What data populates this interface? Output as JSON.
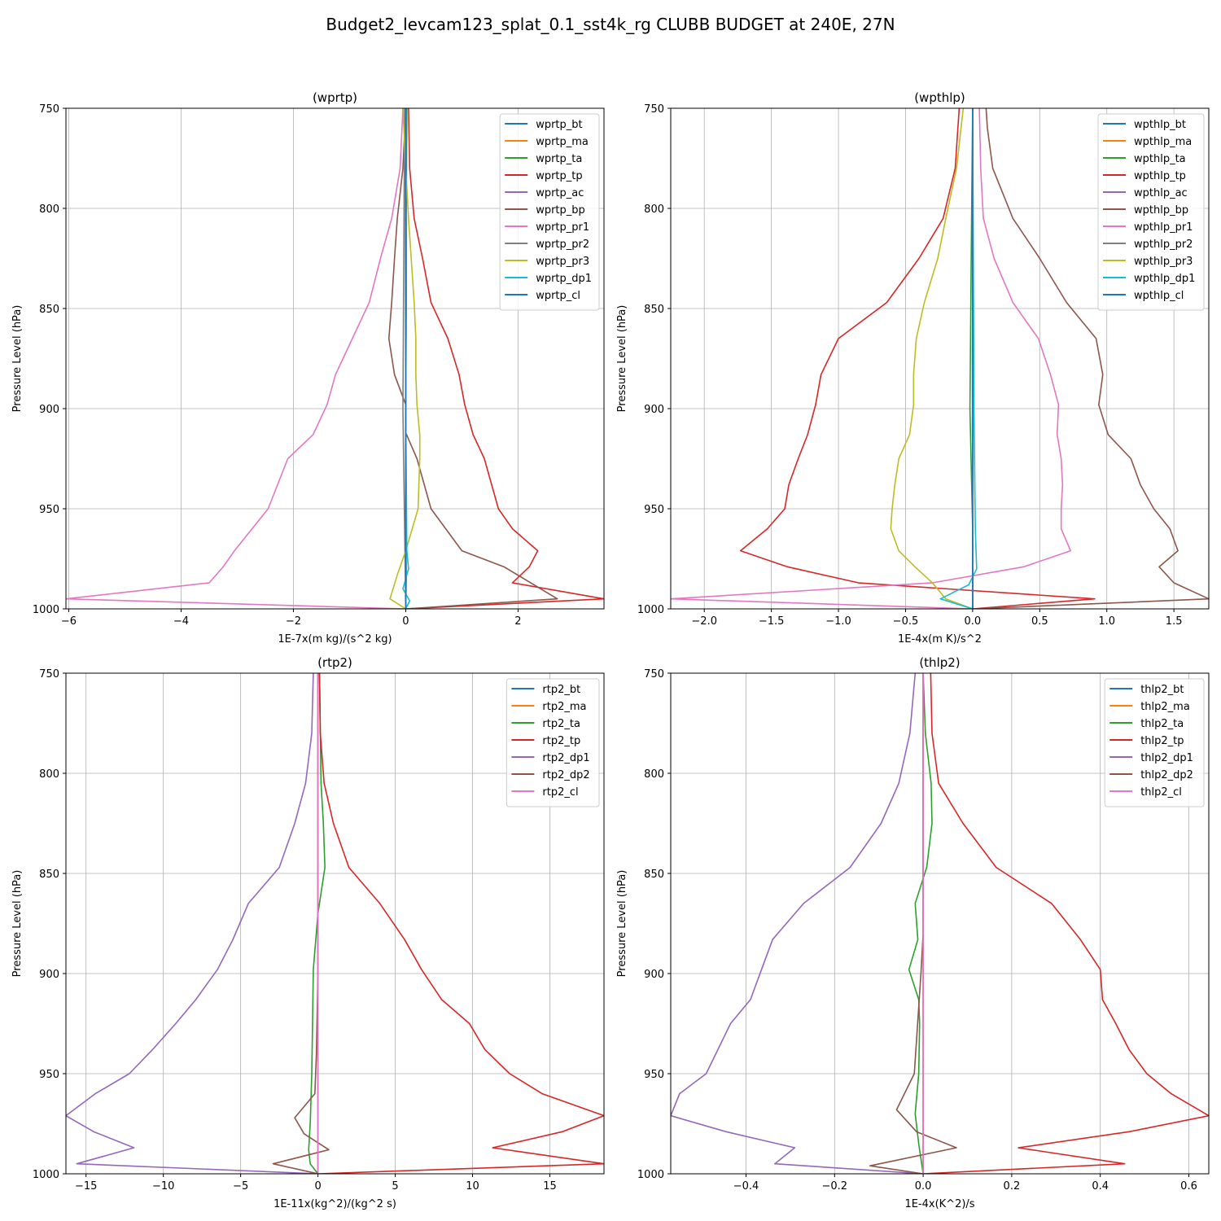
{
  "figure_title": "Budget2_levcam123_splat_0.1_sst4k_rg CLUBB BUDGET at 240E, 27N",
  "colors": {
    "c0": "#1f77b4",
    "c1": "#ff7f0e",
    "c2": "#2ca02c",
    "c3": "#d62728",
    "c4": "#9467bd",
    "c5": "#8c564b",
    "c6": "#e377c2",
    "c7": "#7f7f7f",
    "c8": "#bcbd22",
    "c9": "#17becf"
  },
  "chart_data": [
    {
      "type": "line",
      "title": "(wprtp)",
      "xlabel": "1E-7x(m kg)/(s^2 kg)",
      "ylabel": "Pressure Level (hPa)",
      "xlim": [
        -6.05,
        3.53
      ],
      "ylim": [
        1000,
        750
      ],
      "xticks": [
        -6,
        -4,
        -2,
        0,
        2
      ],
      "xtick_labels": [
        "−6",
        "−4",
        "−2",
        "0",
        "2"
      ],
      "yticks": [
        750,
        800,
        850,
        900,
        950,
        1000
      ],
      "ytick_labels": [
        "750",
        "800",
        "850",
        "900",
        "950",
        "1000"
      ],
      "grid": true,
      "legend": "upper right",
      "series": [
        {
          "name": "wprtp_bt",
          "color": "c0",
          "x": [
            0.0,
            0.0,
            0.0
          ],
          "y": [
            750,
            900,
            1000
          ]
        },
        {
          "name": "wprtp_ma",
          "color": "c1",
          "x": [
            0.0,
            0.0,
            0.0
          ],
          "y": [
            750,
            900,
            1000
          ]
        },
        {
          "name": "wprtp_ta",
          "color": "c2",
          "x": [
            0.02,
            0.01,
            0.01,
            0.0,
            0.0,
            0.01,
            0.0
          ],
          "y": [
            750,
            800,
            850,
            900,
            950,
            985,
            1000
          ]
        },
        {
          "name": "wprtp_tp",
          "color": "c3",
          "x": [
            0.05,
            0.07,
            0.15,
            0.3,
            0.45,
            0.75,
            0.95,
            1.05,
            1.2,
            1.4,
            1.65,
            1.9,
            2.35,
            2.2,
            1.9,
            3.53,
            0.0
          ],
          "y": [
            750,
            780,
            805,
            825,
            847,
            865,
            883,
            898,
            913,
            925,
            950,
            960,
            971,
            979,
            987,
            995,
            1000
          ]
        },
        {
          "name": "wprtp_ac",
          "color": "c4",
          "x": [
            -0.01,
            0.0,
            0.0
          ],
          "y": [
            750,
            900,
            1000
          ]
        },
        {
          "name": "wprtp_bp",
          "color": "c5",
          "x": [
            0.0,
            -0.05,
            -0.15,
            -0.2,
            -0.25,
            -0.3,
            -0.2,
            0.0,
            0.0,
            0.2,
            0.45,
            1.0,
            1.75,
            2.7,
            0.0
          ],
          "y": [
            750,
            780,
            805,
            825,
            847,
            865,
            883,
            898,
            912,
            925,
            950,
            971,
            979,
            995,
            1000
          ]
        },
        {
          "name": "wprtp_pr1",
          "color": "c6",
          "x": [
            -0.05,
            -0.1,
            -0.25,
            -0.45,
            -0.65,
            -0.95,
            -1.25,
            -1.4,
            -1.65,
            -2.1,
            -2.45,
            -3.05,
            -3.25,
            -3.5,
            -6.05,
            0.0
          ],
          "y": [
            750,
            780,
            805,
            825,
            847,
            865,
            883,
            898,
            913,
            925,
            950,
            971,
            979,
            987,
            995,
            1000
          ]
        },
        {
          "name": "wprtp_pr2",
          "color": "c7",
          "x": [
            -0.02,
            -0.03,
            -0.05,
            0.0
          ],
          "y": [
            750,
            800,
            900,
            1000
          ]
        },
        {
          "name": "wprtp_pr3",
          "color": "c8",
          "x": [
            -0.05,
            0.0,
            0.05,
            0.15,
            0.18,
            0.18,
            0.2,
            0.25,
            0.25,
            0.22,
            0.0,
            -0.15,
            -0.28,
            0.0
          ],
          "y": [
            750,
            780,
            805,
            847,
            865,
            883,
            898,
            913,
            925,
            950,
            971,
            983,
            995,
            1000
          ]
        },
        {
          "name": "wprtp_dp1",
          "color": "c9",
          "x": [
            0.0,
            0.0,
            0.02,
            0.05,
            -0.05,
            0.07,
            0.0
          ],
          "y": [
            750,
            900,
            971,
            980,
            990,
            996,
            1000
          ]
        },
        {
          "name": "wprtp_cl",
          "color": "c0",
          "x": [
            0.0,
            0.0
          ],
          "y": [
            750,
            1000
          ]
        }
      ]
    },
    {
      "type": "line",
      "title": "(wpthlp)",
      "xlabel": "1E-4x(m K)/s^2",
      "ylabel": "Pressure Level (hPa)",
      "xlim": [
        -2.25,
        1.76
      ],
      "ylim": [
        1000,
        750
      ],
      "xticks": [
        -2.0,
        -1.5,
        -1.0,
        -0.5,
        0.0,
        0.5,
        1.0,
        1.5
      ],
      "xtick_labels": [
        "−2.0",
        "−1.5",
        "−1.0",
        "−0.5",
        "0.0",
        "0.5",
        "1.0",
        "1.5"
      ],
      "yticks": [
        750,
        800,
        850,
        900,
        950,
        1000
      ],
      "ytick_labels": [
        "750",
        "800",
        "850",
        "900",
        "950",
        "1000"
      ],
      "grid": true,
      "legend": "upper right",
      "series": [
        {
          "name": "wpthlp_bt",
          "color": "c0",
          "x": [
            0.0,
            0.0,
            0.0
          ],
          "y": [
            750,
            900,
            1000
          ]
        },
        {
          "name": "wpthlp_ma",
          "color": "c1",
          "x": [
            0.0,
            0.0,
            0.0
          ],
          "y": [
            750,
            900,
            1000
          ]
        },
        {
          "name": "wpthlp_ta",
          "color": "c2",
          "x": [
            0.0,
            -0.01,
            -0.02,
            0.0,
            0.0
          ],
          "y": [
            750,
            820,
            900,
            960,
            1000
          ]
        },
        {
          "name": "wpthlp_tp",
          "color": "c3",
          "x": [
            -0.1,
            -0.13,
            -0.22,
            -0.4,
            -0.64,
            -1.0,
            -1.13,
            -1.17,
            -1.23,
            -1.3,
            -1.37,
            -1.4,
            -1.53,
            -1.73,
            -1.38,
            -0.85,
            0.91,
            0.0
          ],
          "y": [
            750,
            780,
            805,
            825,
            847,
            865,
            883,
            898,
            913,
            925,
            938,
            950,
            960,
            971,
            979,
            987,
            995,
            1000
          ]
        },
        {
          "name": "wpthlp_ac",
          "color": "c4",
          "x": [
            0.0,
            0.0
          ],
          "y": [
            750,
            1000
          ]
        },
        {
          "name": "wpthlp_bp",
          "color": "c5",
          "x": [
            0.1,
            0.11,
            0.15,
            0.3,
            0.5,
            0.7,
            0.92,
            0.97,
            0.94,
            1.01,
            1.18,
            1.25,
            1.35,
            1.47,
            1.53,
            1.39,
            1.5,
            1.76,
            0.0
          ],
          "y": [
            750,
            760,
            780,
            805,
            825,
            847,
            865,
            883,
            898,
            913,
            925,
            938,
            950,
            960,
            971,
            979,
            987,
            995,
            1000
          ]
        },
        {
          "name": "wpthlp_pr1",
          "color": "c6",
          "x": [
            0.05,
            0.06,
            0.08,
            0.16,
            0.3,
            0.49,
            0.58,
            0.64,
            0.63,
            0.66,
            0.67,
            0.66,
            0.66,
            0.73,
            0.38,
            -0.3,
            -2.25,
            0.0
          ],
          "y": [
            750,
            780,
            805,
            825,
            847,
            865,
            883,
            898,
            913,
            925,
            938,
            950,
            960,
            971,
            979,
            987,
            995,
            1000
          ]
        },
        {
          "name": "wpthlp_pr2",
          "color": "c7",
          "x": [
            0.0,
            0.0
          ],
          "y": [
            750,
            1000
          ]
        },
        {
          "name": "wpthlp_pr3",
          "color": "c8",
          "x": [
            -0.07,
            -0.12,
            -0.2,
            -0.26,
            -0.36,
            -0.42,
            -0.44,
            -0.44,
            -0.47,
            -0.55,
            -0.58,
            -0.6,
            -0.61,
            -0.55,
            -0.43,
            -0.3,
            -0.2,
            0.0
          ],
          "y": [
            750,
            780,
            805,
            825,
            847,
            865,
            883,
            898,
            913,
            925,
            938,
            950,
            960,
            971,
            979,
            987,
            995,
            1000
          ]
        },
        {
          "name": "wpthlp_dp1",
          "color": "c9",
          "x": [
            0.0,
            0.01,
            0.02,
            0.03,
            -0.03,
            -0.24,
            0.0
          ],
          "y": [
            750,
            900,
            960,
            980,
            988,
            995,
            1000
          ]
        },
        {
          "name": "wpthlp_cl",
          "color": "c0",
          "x": [
            0.0,
            0.0
          ],
          "y": [
            750,
            1000
          ]
        }
      ]
    },
    {
      "type": "line",
      "title": "(rtp2)",
      "xlabel": "1E-11x(kg^2)/(kg^2 s)",
      "ylabel": "Pressure Level (hPa)",
      "xlim": [
        -16.3,
        18.5
      ],
      "ylim": [
        1000,
        750
      ],
      "xticks": [
        -15,
        -10,
        -5,
        0,
        5,
        10,
        15
      ],
      "xtick_labels": [
        "−15",
        "−10",
        "−5",
        "0",
        "5",
        "10",
        "15"
      ],
      "yticks": [
        750,
        800,
        850,
        900,
        950,
        1000
      ],
      "ytick_labels": [
        "750",
        "800",
        "850",
        "900",
        "950",
        "1000"
      ],
      "grid": true,
      "legend": "upper right",
      "series": [
        {
          "name": "rtp2_bt",
          "color": "c0",
          "x": [
            0.0,
            0.0
          ],
          "y": [
            750,
            1000
          ]
        },
        {
          "name": "rtp2_ma",
          "color": "c1",
          "x": [
            0.0,
            0.0
          ],
          "y": [
            750,
            1000
          ]
        },
        {
          "name": "rtp2_ta",
          "color": "c2",
          "x": [
            0.1,
            0.2,
            0.35,
            0.45,
            0.0,
            -0.3,
            -0.35,
            -0.4,
            -0.5,
            -0.6,
            -0.5,
            0.0
          ],
          "y": [
            750,
            805,
            825,
            847,
            870,
            898,
            925,
            950,
            975,
            988,
            995,
            1000
          ]
        },
        {
          "name": "rtp2_tp",
          "color": "c3",
          "x": [
            0.1,
            0.15,
            0.4,
            1.0,
            2.0,
            4.0,
            5.6,
            6.7,
            8.0,
            9.8,
            10.8,
            12.4,
            14.5,
            18.5,
            15.8,
            11.3,
            18.5,
            0.0
          ],
          "y": [
            750,
            780,
            805,
            825,
            847,
            865,
            883,
            898,
            913,
            925,
            938,
            950,
            960,
            971,
            979,
            987,
            995,
            1000
          ]
        },
        {
          "name": "rtp2_dp1",
          "color": "c4",
          "x": [
            -0.3,
            -0.4,
            -0.8,
            -1.5,
            -2.5,
            -4.5,
            -5.5,
            -6.5,
            -7.9,
            -9.2,
            -10.7,
            -12.2,
            -14.4,
            -16.3,
            -14.5,
            -11.9,
            -15.6,
            0.0
          ],
          "y": [
            750,
            780,
            805,
            825,
            847,
            865,
            883,
            898,
            913,
            925,
            938,
            950,
            960,
            971,
            979,
            987,
            995,
            1000
          ]
        },
        {
          "name": "rtp2_dp2",
          "color": "c5",
          "x": [
            0.0,
            0.0,
            -0.1,
            -0.2,
            -1.5,
            -0.9,
            0.7,
            -2.9,
            0.0
          ],
          "y": [
            750,
            900,
            940,
            960,
            972,
            980,
            988,
            995,
            1000
          ]
        },
        {
          "name": "rtp2_cl",
          "color": "c6",
          "x": [
            0.0,
            0.0
          ],
          "y": [
            750,
            1000
          ]
        }
      ]
    },
    {
      "type": "line",
      "title": "(thlp2)",
      "xlabel": "1E-4x(K^2)/s",
      "ylabel": "Pressure Level (hPa)",
      "xlim": [
        -0.57,
        0.645
      ],
      "ylim": [
        1000,
        750
      ],
      "xticks": [
        -0.4,
        -0.2,
        0.0,
        0.2,
        0.4,
        0.6
      ],
      "xtick_labels": [
        "−0.4",
        "−0.2",
        "0.0",
        "0.2",
        "0.4",
        "0.6"
      ],
      "yticks": [
        750,
        800,
        850,
        900,
        950,
        1000
      ],
      "ytick_labels": [
        "750",
        "800",
        "850",
        "900",
        "950",
        "1000"
      ],
      "grid": true,
      "legend": "upper right",
      "series": [
        {
          "name": "thlp2_bt",
          "color": "c0",
          "x": [
            0.0,
            0.0
          ],
          "y": [
            750,
            1000
          ]
        },
        {
          "name": "thlp2_ma",
          "color": "c1",
          "x": [
            0.0,
            0.0
          ],
          "y": [
            750,
            1000
          ]
        },
        {
          "name": "thlp2_ta",
          "color": "c2",
          "x": [
            0.0,
            0.005,
            0.018,
            0.02,
            0.008,
            -0.018,
            -0.012,
            -0.032,
            -0.01,
            -0.008,
            -0.01,
            -0.018,
            -0.01,
            0.0
          ],
          "y": [
            750,
            780,
            805,
            825,
            847,
            865,
            883,
            898,
            913,
            925,
            950,
            970,
            985,
            1000
          ]
        },
        {
          "name": "thlp2_tp",
          "color": "c3",
          "x": [
            0.017,
            0.02,
            0.035,
            0.09,
            0.165,
            0.29,
            0.355,
            0.4,
            0.405,
            0.435,
            0.465,
            0.505,
            0.56,
            0.645,
            0.465,
            0.215,
            0.455,
            0.0
          ],
          "y": [
            750,
            780,
            805,
            825,
            847,
            865,
            883,
            898,
            913,
            925,
            938,
            950,
            960,
            971,
            979,
            987,
            995,
            1000
          ]
        },
        {
          "name": "thlp2_dp1",
          "color": "c4",
          "x": [
            -0.018,
            -0.03,
            -0.055,
            -0.095,
            -0.165,
            -0.27,
            -0.34,
            -0.365,
            -0.39,
            -0.435,
            -0.49,
            -0.55,
            -0.57,
            -0.445,
            -0.29,
            -0.335,
            0.0
          ],
          "y": [
            750,
            780,
            805,
            825,
            847,
            865,
            883,
            898,
            913,
            925,
            950,
            960,
            971,
            979,
            987,
            995,
            1000
          ]
        },
        {
          "name": "thlp2_dp2",
          "color": "c5",
          "x": [
            0.0,
            0.0,
            -0.005,
            -0.02,
            -0.06,
            -0.015,
            0.075,
            -0.12,
            0.0
          ],
          "y": [
            750,
            880,
            900,
            950,
            968,
            979,
            987,
            996,
            1000
          ]
        },
        {
          "name": "thlp2_cl",
          "color": "c6",
          "x": [
            0.0,
            0.0
          ],
          "y": [
            750,
            1000
          ]
        }
      ]
    }
  ]
}
